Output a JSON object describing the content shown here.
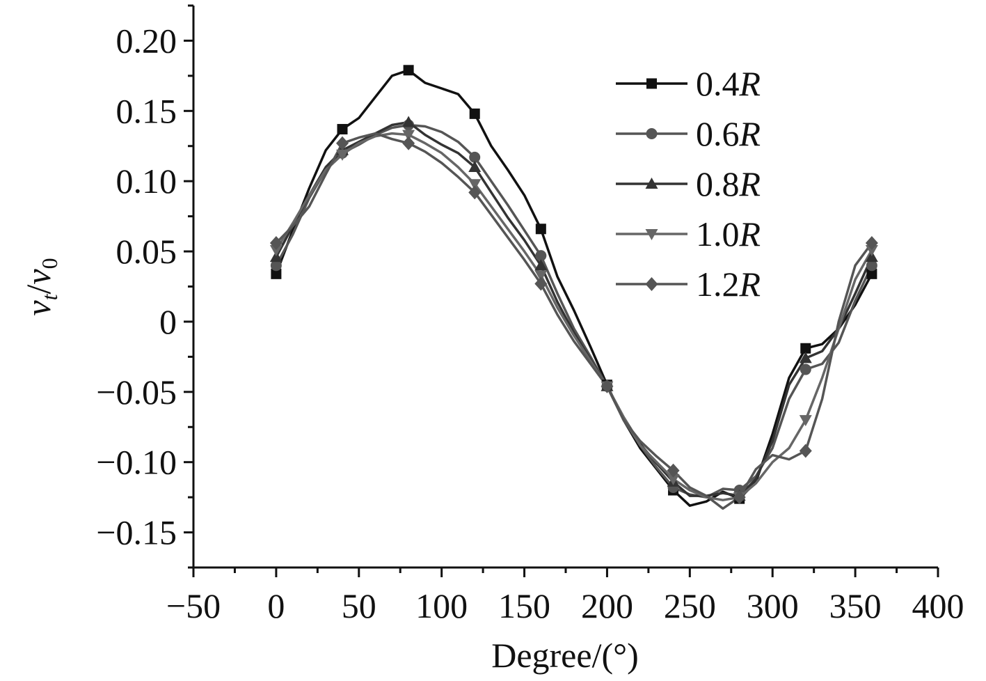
{
  "chart_data": {
    "type": "line",
    "title": "",
    "xlabel": "Degree/(°)",
    "ylabel_parts": {
      "main": "v",
      "sub": "t",
      "sep": "/",
      "main2": "v",
      "sub2": "0"
    },
    "xlim": [
      -50,
      400
    ],
    "ylim": [
      -0.175,
      0.225
    ],
    "xticks": [
      -50,
      0,
      50,
      100,
      150,
      200,
      250,
      300,
      350,
      400
    ],
    "xtick_labels": [
      "−50",
      "0",
      "50",
      "100",
      "150",
      "200",
      "250",
      "300",
      "350",
      "400"
    ],
    "yticks": [
      0.2,
      0.15,
      0.1,
      0.05,
      0,
      -0.05,
      -0.1,
      -0.15
    ],
    "ytick_labels": [
      "0.20",
      "0.15",
      "0.10",
      "0.05",
      "0",
      "−0.05",
      "−0.10",
      "−0.15"
    ],
    "legend_position": "top-right",
    "series": [
      {
        "name": "0.4R",
        "num": "0.4",
        "unit": "R",
        "marker": "square",
        "color": "#111111",
        "x": [
          0,
          40,
          80,
          120,
          160,
          200,
          240,
          280,
          320,
          360
        ],
        "y": [
          0.034,
          0.137,
          0.179,
          0.148,
          0.066,
          -0.045,
          -0.12,
          -0.126,
          -0.019,
          0.034
        ],
        "curve": [
          [
            0,
            0.034
          ],
          [
            10,
            0.065
          ],
          [
            20,
            0.095
          ],
          [
            30,
            0.122
          ],
          [
            40,
            0.137
          ],
          [
            50,
            0.145
          ],
          [
            60,
            0.16
          ],
          [
            70,
            0.175
          ],
          [
            80,
            0.179
          ],
          [
            90,
            0.17
          ],
          [
            100,
            0.166
          ],
          [
            110,
            0.162
          ],
          [
            120,
            0.148
          ],
          [
            130,
            0.125
          ],
          [
            140,
            0.108
          ],
          [
            150,
            0.09
          ],
          [
            160,
            0.066
          ],
          [
            170,
            0.032
          ],
          [
            180,
            0.008
          ],
          [
            190,
            -0.018
          ],
          [
            200,
            -0.045
          ],
          [
            210,
            -0.07
          ],
          [
            220,
            -0.09
          ],
          [
            230,
            -0.105
          ],
          [
            240,
            -0.12
          ],
          [
            250,
            -0.131
          ],
          [
            260,
            -0.128
          ],
          [
            270,
            -0.121
          ],
          [
            280,
            -0.126
          ],
          [
            290,
            -0.114
          ],
          [
            300,
            -0.08
          ],
          [
            310,
            -0.04
          ],
          [
            320,
            -0.019
          ],
          [
            330,
            -0.016
          ],
          [
            340,
            -0.005
          ],
          [
            350,
            0.012
          ],
          [
            360,
            0.034
          ]
        ]
      },
      {
        "name": "0.6R",
        "num": "0.6",
        "unit": "R",
        "marker": "circle",
        "color": "#555555",
        "x": [
          0,
          40,
          80,
          120,
          160,
          200,
          240,
          280,
          320,
          360
        ],
        "y": [
          0.04,
          0.12,
          0.14,
          0.117,
          0.047,
          -0.046,
          -0.118,
          -0.12,
          -0.034,
          0.04
        ],
        "curve": [
          [
            0,
            0.04
          ],
          [
            10,
            0.062
          ],
          [
            20,
            0.088
          ],
          [
            30,
            0.108
          ],
          [
            40,
            0.12
          ],
          [
            50,
            0.126
          ],
          [
            60,
            0.133
          ],
          [
            70,
            0.138
          ],
          [
            80,
            0.14
          ],
          [
            90,
            0.139
          ],
          [
            100,
            0.135
          ],
          [
            110,
            0.128
          ],
          [
            120,
            0.117
          ],
          [
            130,
            0.1
          ],
          [
            140,
            0.083
          ],
          [
            150,
            0.065
          ],
          [
            160,
            0.047
          ],
          [
            170,
            0.02
          ],
          [
            180,
            -0.005
          ],
          [
            190,
            -0.025
          ],
          [
            200,
            -0.046
          ],
          [
            210,
            -0.07
          ],
          [
            220,
            -0.088
          ],
          [
            230,
            -0.104
          ],
          [
            240,
            -0.118
          ],
          [
            250,
            -0.123
          ],
          [
            260,
            -0.125
          ],
          [
            270,
            -0.119
          ],
          [
            280,
            -0.12
          ],
          [
            290,
            -0.11
          ],
          [
            300,
            -0.09
          ],
          [
            310,
            -0.055
          ],
          [
            320,
            -0.034
          ],
          [
            330,
            -0.03
          ],
          [
            340,
            -0.015
          ],
          [
            350,
            0.015
          ],
          [
            360,
            0.04
          ]
        ]
      },
      {
        "name": "0.8R",
        "num": "0.8",
        "unit": "R",
        "marker": "triangle-up",
        "color": "#333333",
        "x": [
          0,
          40,
          80,
          120,
          160,
          200,
          240,
          280,
          320,
          360
        ],
        "y": [
          0.046,
          0.122,
          0.142,
          0.11,
          0.04,
          -0.046,
          -0.114,
          -0.124,
          -0.026,
          0.046
        ],
        "curve": [
          [
            0,
            0.046
          ],
          [
            10,
            0.068
          ],
          [
            20,
            0.09
          ],
          [
            30,
            0.11
          ],
          [
            40,
            0.122
          ],
          [
            50,
            0.128
          ],
          [
            60,
            0.134
          ],
          [
            70,
            0.14
          ],
          [
            80,
            0.142
          ],
          [
            90,
            0.133
          ],
          [
            100,
            0.126
          ],
          [
            110,
            0.12
          ],
          [
            120,
            0.11
          ],
          [
            130,
            0.092
          ],
          [
            140,
            0.074
          ],
          [
            150,
            0.058
          ],
          [
            160,
            0.04
          ],
          [
            170,
            0.014
          ],
          [
            180,
            -0.008
          ],
          [
            190,
            -0.027
          ],
          [
            200,
            -0.046
          ],
          [
            210,
            -0.068
          ],
          [
            220,
            -0.087
          ],
          [
            230,
            -0.101
          ],
          [
            240,
            -0.114
          ],
          [
            250,
            -0.124
          ],
          [
            260,
            -0.124
          ],
          [
            270,
            -0.122
          ],
          [
            280,
            -0.124
          ],
          [
            290,
            -0.112
          ],
          [
            300,
            -0.085
          ],
          [
            310,
            -0.045
          ],
          [
            320,
            -0.026
          ],
          [
            330,
            -0.021
          ],
          [
            340,
            -0.005
          ],
          [
            350,
            0.02
          ],
          [
            360,
            0.046
          ]
        ]
      },
      {
        "name": "1.0R",
        "num": "1.0",
        "unit": "R",
        "marker": "triangle-down",
        "color": "#666666",
        "x": [
          0,
          40,
          80,
          120,
          160,
          200,
          240,
          280,
          320,
          360
        ],
        "y": [
          0.051,
          0.119,
          0.133,
          0.098,
          0.033,
          -0.046,
          -0.112,
          -0.125,
          -0.07,
          0.051
        ],
        "curve": [
          [
            0,
            0.051
          ],
          [
            10,
            0.07
          ],
          [
            20,
            0.09
          ],
          [
            30,
            0.108
          ],
          [
            40,
            0.119
          ],
          [
            50,
            0.127
          ],
          [
            60,
            0.132
          ],
          [
            70,
            0.134
          ],
          [
            80,
            0.133
          ],
          [
            90,
            0.127
          ],
          [
            100,
            0.12
          ],
          [
            110,
            0.11
          ],
          [
            120,
            0.098
          ],
          [
            130,
            0.082
          ],
          [
            140,
            0.066
          ],
          [
            150,
            0.05
          ],
          [
            160,
            0.033
          ],
          [
            170,
            0.01
          ],
          [
            180,
            -0.01
          ],
          [
            190,
            -0.028
          ],
          [
            200,
            -0.046
          ],
          [
            210,
            -0.068
          ],
          [
            220,
            -0.088
          ],
          [
            230,
            -0.1
          ],
          [
            240,
            -0.112
          ],
          [
            250,
            -0.12
          ],
          [
            260,
            -0.125
          ],
          [
            270,
            -0.127
          ],
          [
            280,
            -0.125
          ],
          [
            290,
            -0.115
          ],
          [
            300,
            -0.1
          ],
          [
            310,
            -0.09
          ],
          [
            320,
            -0.07
          ],
          [
            330,
            -0.04
          ],
          [
            340,
            -0.005
          ],
          [
            350,
            0.03
          ],
          [
            360,
            0.051
          ]
        ]
      },
      {
        "name": "1.2R",
        "num": "1.2",
        "unit": "R",
        "marker": "diamond",
        "color": "#555555",
        "x": [
          0,
          40,
          80,
          120,
          160,
          200,
          240,
          280,
          320,
          360
        ],
        "y": [
          0.056,
          0.127,
          0.127,
          0.092,
          0.027,
          -0.046,
          -0.106,
          -0.125,
          -0.092,
          0.056
        ],
        "curve": [
          [
            0,
            0.056
          ],
          [
            10,
            0.068
          ],
          [
            20,
            0.082
          ],
          [
            30,
            0.105
          ],
          [
            40,
            0.127
          ],
          [
            50,
            0.131
          ],
          [
            60,
            0.134
          ],
          [
            70,
            0.13
          ],
          [
            80,
            0.127
          ],
          [
            90,
            0.121
          ],
          [
            100,
            0.113
          ],
          [
            110,
            0.103
          ],
          [
            120,
            0.092
          ],
          [
            130,
            0.076
          ],
          [
            140,
            0.06
          ],
          [
            150,
            0.044
          ],
          [
            160,
            0.027
          ],
          [
            170,
            0.005
          ],
          [
            180,
            -0.014
          ],
          [
            190,
            -0.03
          ],
          [
            200,
            -0.046
          ],
          [
            210,
            -0.07
          ],
          [
            220,
            -0.085
          ],
          [
            230,
            -0.096
          ],
          [
            240,
            -0.106
          ],
          [
            250,
            -0.118
          ],
          [
            260,
            -0.124
          ],
          [
            270,
            -0.133
          ],
          [
            280,
            -0.125
          ],
          [
            290,
            -0.105
          ],
          [
            300,
            -0.095
          ],
          [
            310,
            -0.098
          ],
          [
            320,
            -0.092
          ],
          [
            330,
            -0.055
          ],
          [
            340,
            0.0
          ],
          [
            350,
            0.04
          ],
          [
            360,
            0.056
          ]
        ]
      }
    ]
  }
}
